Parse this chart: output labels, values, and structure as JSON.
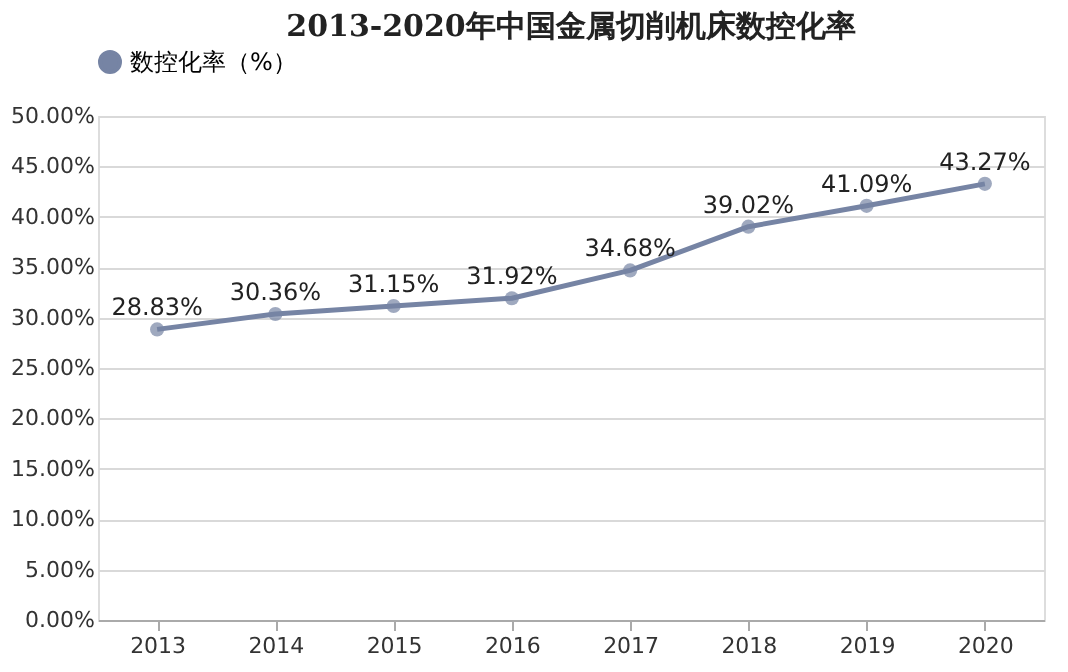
{
  "chart_data": {
    "type": "line",
    "title": "2013-2020年中国金属切削机床数控化率",
    "categories": [
      "2013",
      "2014",
      "2015",
      "2016",
      "2017",
      "2018",
      "2019",
      "2020"
    ],
    "series": [
      {
        "name": "数控化率（%）",
        "color": "#7684a4",
        "values": [
          28.83,
          30.36,
          31.15,
          31.92,
          34.68,
          39.02,
          41.09,
          43.27
        ],
        "value_labels": [
          "28.83%",
          "30.36%",
          "31.15%",
          "31.92%",
          "34.68%",
          "39.02%",
          "41.09%",
          "43.27%"
        ]
      }
    ],
    "ylim": [
      0,
      50
    ],
    "yticks": [
      {
        "value": 0,
        "label": "0.00%"
      },
      {
        "value": 5,
        "label": "5.00%"
      },
      {
        "value": 10,
        "label": "10.00%"
      },
      {
        "value": 15,
        "label": "15.00%"
      },
      {
        "value": 20,
        "label": "20.00%"
      },
      {
        "value": 25,
        "label": "25.00%"
      },
      {
        "value": 30,
        "label": "30.00%"
      },
      {
        "value": 35,
        "label": "35.00%"
      },
      {
        "value": 40,
        "label": "40.00%"
      },
      {
        "value": 45,
        "label": "45.00%"
      },
      {
        "value": 50,
        "label": "50.00%"
      }
    ],
    "grid": "y",
    "legend": "top",
    "marker": "circle",
    "line_style": "solid"
  }
}
